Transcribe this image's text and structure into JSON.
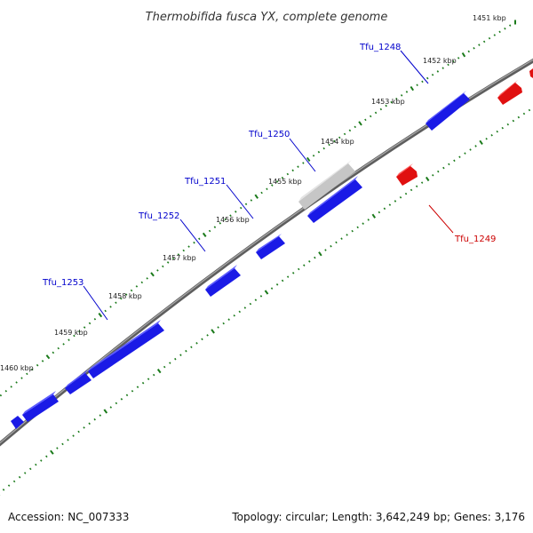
{
  "title": "Thermobifida fusca YX, complete genome",
  "footer": {
    "accession": "Accession: NC_007333",
    "summary": "Topology: circular; Length: 3,642,249 bp; Genes: 3,176"
  },
  "scale_labels": [
    "1451 kbp",
    "1452 kbp",
    "1453 kbp",
    "1454 kbp",
    "1455 kbp",
    "1456 kbp",
    "1457 kbp",
    "1458 kbp",
    "1459 kbp",
    "1460 kbp"
  ],
  "genes": [
    {
      "name": "Tfu_1248",
      "strand": "forward",
      "color": "#0000cc"
    },
    {
      "name": "Tfu_1249",
      "strand": "reverse",
      "color": "#cc0000"
    },
    {
      "name": "Tfu_1250",
      "strand": "forward",
      "color": "#0000cc"
    },
    {
      "name": "Tfu_1251",
      "strand": "forward",
      "color": "#0000cc"
    },
    {
      "name": "Tfu_1252",
      "strand": "forward",
      "color": "#0000cc"
    },
    {
      "name": "Tfu_1253",
      "strand": "forward",
      "color": "#0000cc"
    }
  ],
  "colors": {
    "forward_gene": "#1a1ae6",
    "reverse_gene": "#e01010",
    "selected_gene": "#c8c8c8",
    "backbone": "#808080",
    "ticks": "#1a7a1a"
  }
}
